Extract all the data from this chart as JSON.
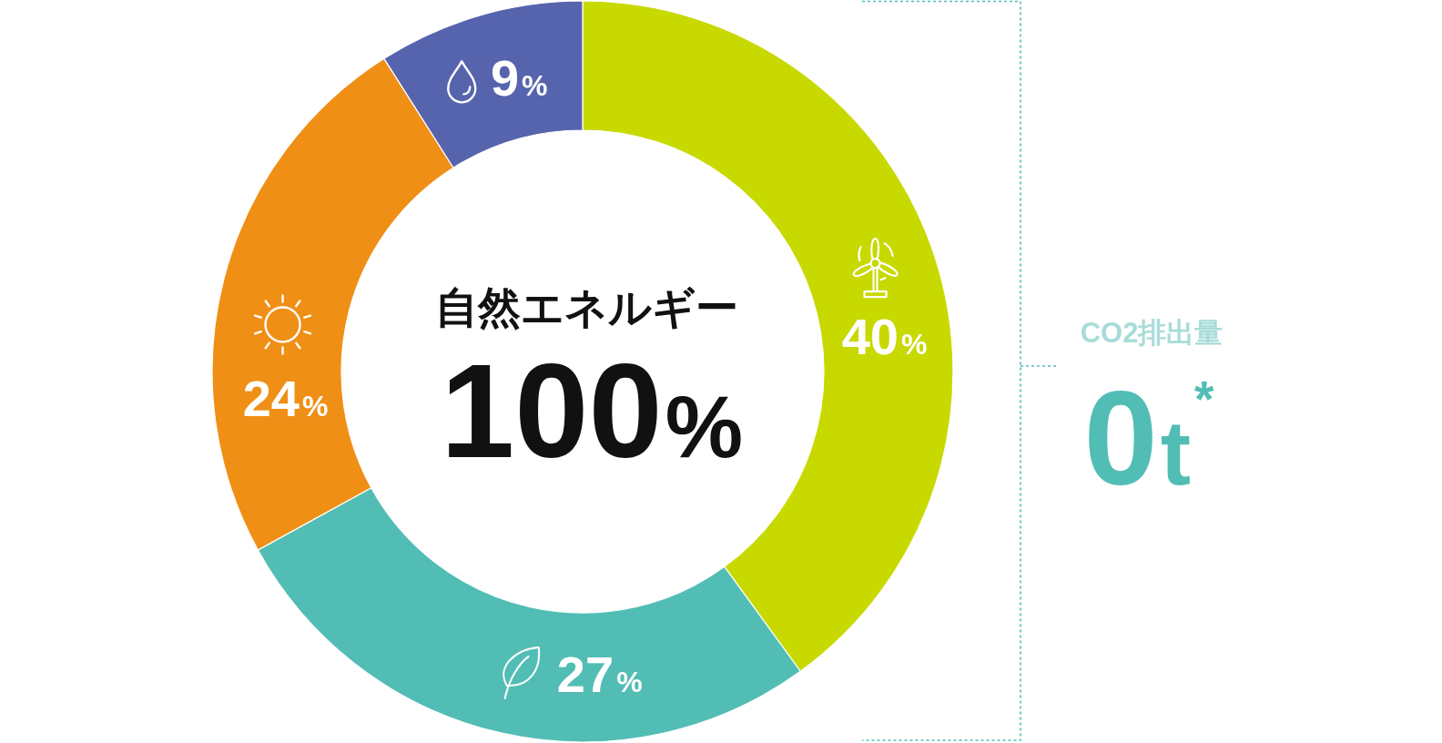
{
  "chart_data": {
    "type": "donut",
    "title": "自然エネルギー",
    "subtitle": "100%",
    "categories": [
      null,
      null,
      null,
      null
    ],
    "values": [
      40,
      27,
      24,
      9
    ],
    "colors": [
      "#c8d900",
      "#52bdb5",
      "#f08f15",
      "#5663ad"
    ],
    "value_labels": [
      "40%",
      "27%",
      "24%",
      "9%"
    ],
    "annotations": [
      "CO2排出量",
      "0t$^{*}$"
    ]
  }
}
